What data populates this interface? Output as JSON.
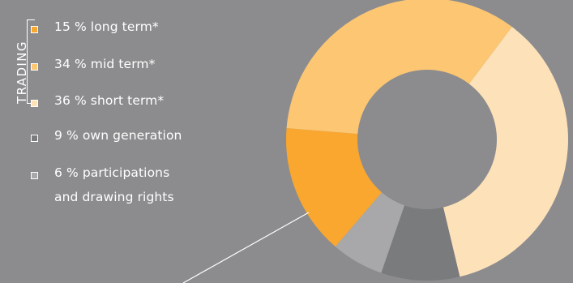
{
  "legend": {
    "group_label": "TRADING",
    "items": [
      {
        "text": "15 % long term*",
        "color": "#f9a72e"
      },
      {
        "text": "34 % mid term*",
        "color": "#fcc673"
      },
      {
        "text": "36 % short term*",
        "color": "#fde1b8"
      },
      {
        "text": "9 % own generation",
        "color": "#7a7b7d"
      },
      {
        "text_line1": "6 % participations",
        "text_line2": "and drawing rights",
        "color": "#a8a8aa"
      }
    ]
  },
  "chart_data": {
    "type": "pie",
    "donut": true,
    "title": "",
    "slices": [
      {
        "label": "short term*",
        "value": 36,
        "color": "#fde1b8"
      },
      {
        "label": "own generation",
        "value": 9,
        "color": "#7a7b7d"
      },
      {
        "label": "participations and drawing rights",
        "value": 6,
        "color": "#a8a8aa"
      },
      {
        "label": "long term*",
        "value": 15,
        "color": "#f9a72e"
      },
      {
        "label": "mid term*",
        "value": 34,
        "color": "#fcc673"
      }
    ]
  }
}
